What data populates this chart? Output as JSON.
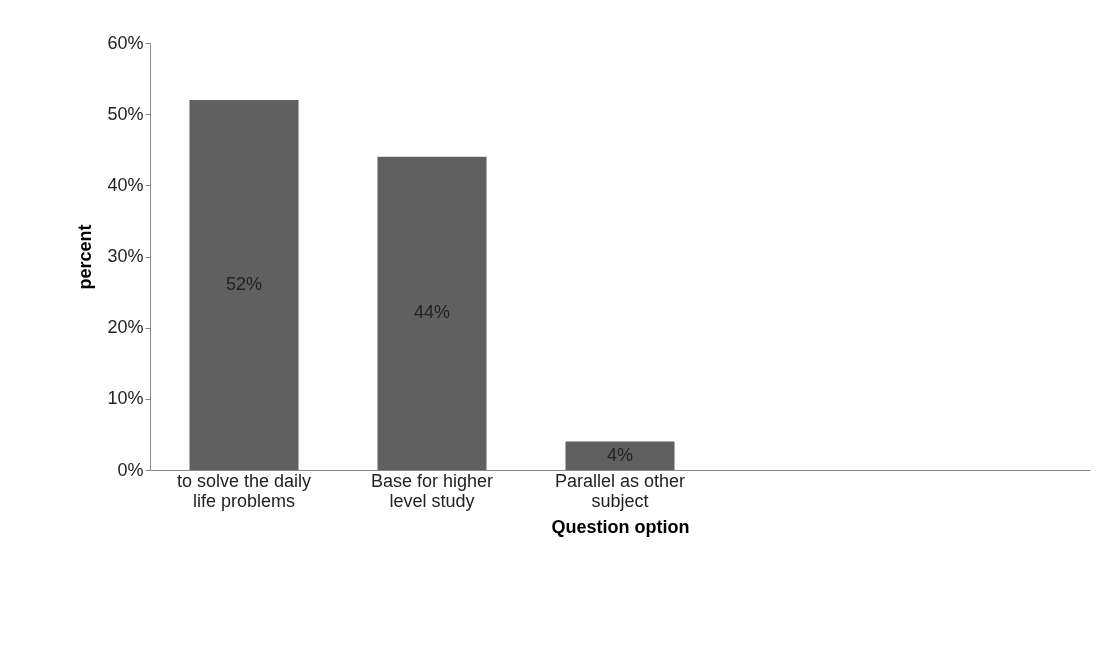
{
  "chart_data": {
    "type": "bar",
    "xlabel": "Question option",
    "ylabel": "percent",
    "categories": [
      "to solve the daily life problems",
      "Base for higher level study",
      "Parallel as other subject",
      null,
      null
    ],
    "values": [
      52,
      44,
      4,
      null,
      null
    ],
    "value_labels": [
      "52%",
      "44%",
      "4%",
      null,
      null
    ],
    "color": "#606060",
    "ylim": [
      0,
      60
    ],
    "yticks": [
      {
        "value": 0,
        "label": "0%"
      },
      {
        "value": 10,
        "label": "10%"
      },
      {
        "value": 20,
        "label": "20%"
      },
      {
        "value": 30,
        "label": "30%"
      },
      {
        "value": 40,
        "label": "40%"
      },
      {
        "value": 50,
        "label": "50%"
      },
      {
        "value": 60,
        "label": "60%"
      }
    ],
    "grid": false
  }
}
